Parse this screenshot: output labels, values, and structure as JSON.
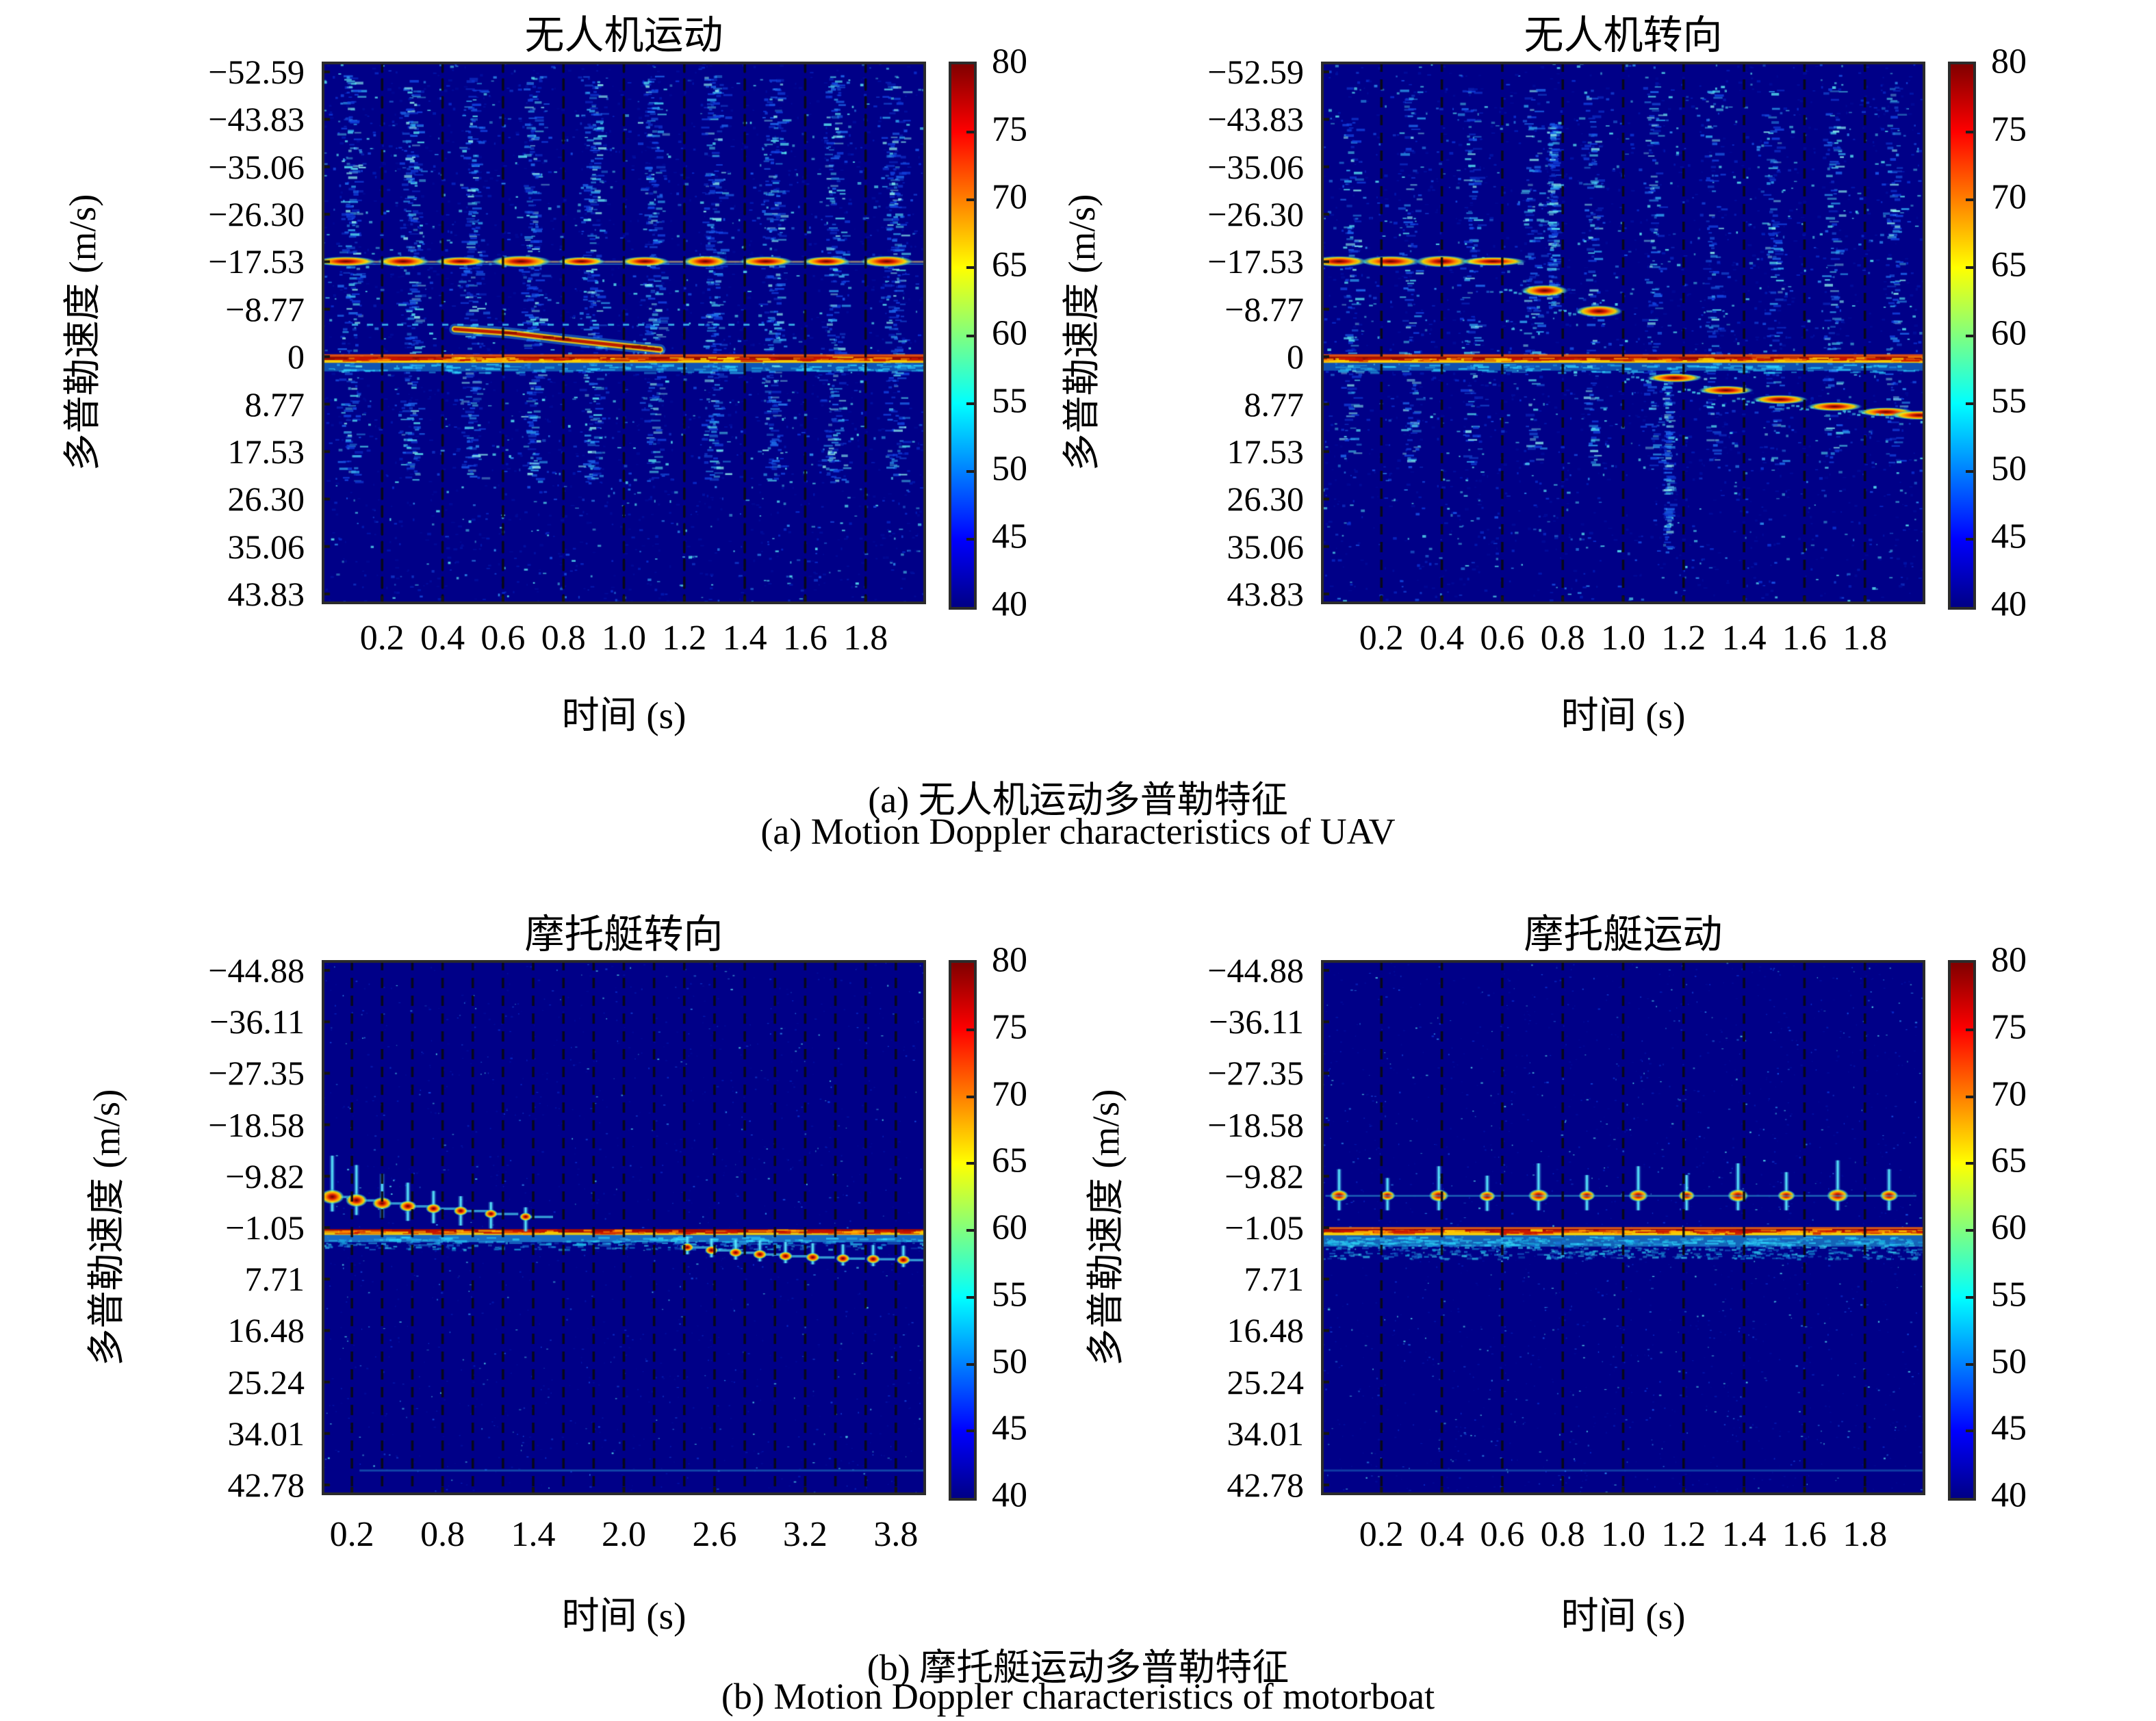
{
  "colors": {
    "plot_bg": "#000088",
    "border": "#2b2b2b",
    "text": "#000000",
    "zero_line": "#970a00",
    "hot_blob": "#d81e00",
    "speckle_cyan": "#55dff0"
  },
  "figure": {
    "captions": {
      "a_zh": "(a) 无人机运动多普勒特征",
      "a_en": "(a) Motion Doppler characteristics of UAV",
      "b_zh": "(b) 摩托艇运动多普勒特征",
      "b_en": "(b) Motion Doppler characteristics of motorboat"
    }
  },
  "colorbar": {
    "min": 40,
    "max": 80,
    "tick_labels": [
      "80",
      "75",
      "70",
      "65",
      "60",
      "55",
      "50",
      "45",
      "40"
    ]
  },
  "chart_data": [
    {
      "id": "uav-motion",
      "type": "heatmap",
      "title": "无人机运动",
      "xlabel": "时间 (s)",
      "ylabel": "多普勒速度 (m/s)",
      "x_range": [
        0,
        2.0
      ],
      "y_range": [
        -54.5,
        45.7
      ],
      "x_ticks": [
        "0.2",
        "0.4",
        "0.6",
        "0.8",
        "1.0",
        "1.2",
        "1.4",
        "1.6",
        "1.8"
      ],
      "x_tick_values": [
        0.2,
        0.4,
        0.6,
        0.8,
        1.0,
        1.2,
        1.4,
        1.6,
        1.8
      ],
      "y_ticks": [
        "−52.59",
        "−43.83",
        "−35.06",
        "−26.30",
        "−17.53",
        "−8.77",
        "0",
        "8.77",
        "17.53",
        "26.30",
        "35.06",
        "43.83"
      ],
      "colorbar_ticks": [
        "80",
        "75",
        "70",
        "65",
        "60",
        "55",
        "50",
        "45",
        "40"
      ],
      "seed": 7,
      "features": [
        {
          "type": "speckle",
          "count": 2600,
          "bright": 0.12
        },
        {
          "type": "columns",
          "ts": [
            0.09,
            0.29,
            0.49,
            0.69,
            0.89,
            1.09,
            1.29,
            1.49,
            1.69,
            1.89
          ],
          "v0": -52,
          "v1": 23,
          "count": 240,
          "spread": 0.05
        },
        {
          "type": "blob_row",
          "v": -17.6,
          "ts": [
            0.08,
            0.27,
            0.46,
            0.66,
            0.86,
            1.07,
            1.27,
            1.47,
            1.67,
            1.87
          ],
          "rx": 40,
          "ry": 8,
          "line": true
        },
        {
          "type": "dotline",
          "v": -6.1,
          "t0": 0.1,
          "t1": 1.55
        },
        {
          "type": "streak",
          "pts": [
            [
              0.44,
              -5.1
            ],
            [
              0.62,
              -4.4
            ],
            [
              0.8,
              -3.2
            ],
            [
              1.0,
              -2.0
            ],
            [
              1.12,
              -1.3
            ]
          ]
        },
        {
          "type": "hline",
          "v": 0.3,
          "t0": 0,
          "t1": 2,
          "layers": [
            [
              9,
              20,
              "#22c8f0",
              0.42
            ],
            [
              2,
              9,
              "#ffd200",
              0.95
            ],
            [
              -4,
              4,
              "#ff5a00",
              0.85
            ],
            [
              0,
              5,
              "#970a00",
              1
            ]
          ],
          "speckle": 260,
          "hot": true
        },
        {
          "type": "grid",
          "step": 0.2
        }
      ]
    },
    {
      "id": "uav-turning",
      "type": "heatmap",
      "title": "无人机转向",
      "xlabel": "时间 (s)",
      "ylabel": "多普勒速度 (m/s)",
      "x_range": [
        0,
        2.0
      ],
      "y_range": [
        -54.5,
        45.7
      ],
      "x_ticks": [
        "0.2",
        "0.4",
        "0.6",
        "0.8",
        "1.0",
        "1.2",
        "1.4",
        "1.6",
        "1.8"
      ],
      "x_tick_values": [
        0.2,
        0.4,
        0.6,
        0.8,
        1.0,
        1.2,
        1.4,
        1.6,
        1.8
      ],
      "y_ticks": [
        "−52.59",
        "−43.83",
        "−35.06",
        "−26.30",
        "−17.53",
        "−8.77",
        "0",
        "8.77",
        "17.53",
        "26.30",
        "35.06",
        "43.83"
      ],
      "colorbar_ticks": [
        "80",
        "75",
        "70",
        "65",
        "60",
        "55",
        "50",
        "45",
        "40"
      ],
      "seed": 13,
      "features": [
        {
          "type": "speckle",
          "count": 2400,
          "bright": 0.1
        },
        {
          "type": "columns",
          "ts": [
            0.09,
            0.29,
            0.49,
            0.69,
            0.89,
            1.09,
            1.29,
            1.49,
            1.69,
            1.89
          ],
          "v0": -50,
          "v1": 20,
          "count": 130,
          "spread": 0.045
        },
        {
          "type": "columns",
          "ts": [
            0.76
          ],
          "v0": -44,
          "v1": -9,
          "count": 170,
          "spread": 0.018
        },
        {
          "type": "columns",
          "ts": [
            1.14
          ],
          "v0": 2,
          "v1": 36,
          "count": 140,
          "spread": 0.018
        },
        {
          "type": "blob_row",
          "v": -17.6,
          "ts": [
            0.06,
            0.23,
            0.4,
            0.57
          ],
          "rx": 44,
          "ry": 8,
          "line": false
        },
        {
          "type": "blobs_desc",
          "items": [
            [
              0.74,
              -12.2
            ],
            [
              0.92,
              -8.4
            ]
          ],
          "rx": 36,
          "ry": 9
        },
        {
          "type": "hline",
          "v": 0.3,
          "t0": 0,
          "t1": 2,
          "layers": [
            [
              9,
              18,
              "#22c8f0",
              0.4
            ],
            [
              2,
              9,
              "#ffd200",
              0.95
            ],
            [
              -4,
              4,
              "#ff5a00",
              0.85
            ],
            [
              0,
              5,
              "#970a00",
              1
            ]
          ],
          "speckle": 240,
          "hot": true
        },
        {
          "type": "blobs_desc",
          "items": [
            [
              1.17,
              3.9
            ],
            [
              1.34,
              6.2
            ],
            [
              1.52,
              7.9
            ],
            [
              1.7,
              9.2
            ],
            [
              1.87,
              10.2
            ],
            [
              1.98,
              10.8
            ]
          ],
          "rx": 42,
          "ry": 7
        },
        {
          "type": "grid",
          "step": 0.2
        }
      ]
    },
    {
      "id": "motorboat-turning",
      "type": "heatmap",
      "title": "摩托艇转向",
      "xlabel": "时间 (s)",
      "ylabel": "多普勒速度 (m/s)",
      "x_range": [
        0,
        4.0
      ],
      "y_range": [
        -46.6,
        44.5
      ],
      "x_ticks": [
        "0.2",
        "0.8",
        "1.4",
        "2.0",
        "2.6",
        "3.2",
        "3.8"
      ],
      "x_tick_values": [
        0.2,
        0.8,
        1.4,
        2.0,
        2.6,
        3.2,
        3.8
      ],
      "y_ticks": [
        "−44.88",
        "−36.11",
        "−27.35",
        "−18.58",
        "−9.82",
        "−1.05",
        "7.71",
        "16.48",
        "25.24",
        "34.01",
        "42.78"
      ],
      "colorbar_ticks": [
        "80",
        "75",
        "70",
        "65",
        "60",
        "55",
        "50",
        "45",
        "40"
      ],
      "seed": 21,
      "features": [
        {
          "type": "speckle",
          "count": 1500,
          "bright": 0.05,
          "small": true
        },
        {
          "type": "hline",
          "v": -0.5,
          "t0": 0,
          "t1": 4,
          "layers": [
            [
              10,
              13,
              "#2fd8ff",
              0.5
            ],
            [
              3,
              6,
              "#ffd200",
              0.9
            ],
            [
              0,
              5,
              "#a80b00",
              1
            ]
          ],
          "speckle": 200,
          "hot": true
        },
        {
          "type": "band",
          "v0": 0.8,
          "v1": 2.6,
          "t0": 0,
          "t1": 4,
          "count": 260
        },
        {
          "type": "cross_row",
          "items": [
            [
              0.07,
              -6.3,
              7
            ],
            [
              0.23,
              -5.7,
              6
            ],
            [
              0.4,
              -5.2,
              5
            ],
            [
              0.57,
              -4.7,
              4
            ],
            [
              0.74,
              -4.3,
              3
            ],
            [
              0.92,
              -3.9,
              2.5
            ],
            [
              1.12,
              -3.4,
              2
            ],
            [
              1.35,
              -2.9,
              1.6
            ]
          ],
          "dash": 34,
          "down": 2.5
        },
        {
          "type": "cross_row",
          "items": [
            [
              2.42,
              2.3,
              1.8
            ],
            [
              2.58,
              2.8,
              2
            ],
            [
              2.74,
              3.2,
              2.2
            ],
            [
              2.9,
              3.5,
              2.4
            ],
            [
              3.07,
              3.8,
              2.4
            ],
            [
              3.25,
              4.0,
              2.4
            ],
            [
              3.45,
              4.2,
              2.4
            ],
            [
              3.65,
              4.3,
              2.4
            ],
            [
              3.85,
              4.45,
              2.4
            ]
          ],
          "dash": 26,
          "down": 1.2
        },
        {
          "type": "hline",
          "v": 40.3,
          "t0": 0.25,
          "t1": 4,
          "layers": [
            [
              0,
              3,
              "#35c8e8",
              0.35
            ]
          ]
        },
        {
          "type": "grid",
          "step": 0.2
        }
      ]
    },
    {
      "id": "motorboat-motion",
      "type": "heatmap",
      "title": "摩托艇运动",
      "xlabel": "时间 (s)",
      "ylabel": "多普勒速度 (m/s)",
      "x_range": [
        0,
        2.0
      ],
      "y_range": [
        -46.6,
        44.5
      ],
      "x_ticks": [
        "0.2",
        "0.4",
        "0.6",
        "0.8",
        "1.0",
        "1.2",
        "1.4",
        "1.6",
        "1.8"
      ],
      "x_tick_values": [
        0.2,
        0.4,
        0.6,
        0.8,
        1.0,
        1.2,
        1.4,
        1.6,
        1.8
      ],
      "y_ticks": [
        "−44.88",
        "−36.11",
        "−27.35",
        "−18.58",
        "−9.82",
        "−1.05",
        "7.71",
        "16.48",
        "25.24",
        "34.01",
        "42.78"
      ],
      "colorbar_ticks": [
        "80",
        "75",
        "70",
        "65",
        "60",
        "55",
        "50",
        "45",
        "40"
      ],
      "seed": 33,
      "features": [
        {
          "type": "speckle",
          "count": 2000,
          "bright": 0.07,
          "small": true
        },
        {
          "type": "hline",
          "v": -0.5,
          "t0": 0,
          "t1": 2,
          "layers": [
            [
              13,
              20,
              "#27c8e8",
              0.5
            ],
            [
              3,
              7,
              "#ffd200",
              0.95
            ],
            [
              -4,
              3,
              "#ff6a00",
              0.85
            ],
            [
              0,
              5,
              "#a80b00",
              1
            ]
          ],
          "speckle": 300,
          "hot": true
        },
        {
          "type": "band",
          "v0": 0.8,
          "v1": 4.2,
          "t0": 0,
          "t1": 2,
          "count": 700
        },
        {
          "type": "cross_row",
          "items": [
            [
              0.06,
              -6.5,
              4.5
            ],
            [
              0.22,
              -6.5,
              3
            ],
            [
              0.39,
              -6.5,
              5
            ],
            [
              0.55,
              -6.4,
              3.5
            ],
            [
              0.72,
              -6.5,
              5.5
            ],
            [
              0.88,
              -6.5,
              3.5
            ],
            [
              1.05,
              -6.5,
              5
            ],
            [
              1.21,
              -6.5,
              3.5
            ],
            [
              1.38,
              -6.5,
              5.5
            ],
            [
              1.54,
              -6.5,
              4
            ],
            [
              1.71,
              -6.5,
              6
            ],
            [
              1.88,
              -6.5,
              4.5
            ]
          ],
          "dash": 0,
          "down": 2.5,
          "connect": true
        },
        {
          "type": "hline",
          "v": 40.3,
          "t0": 0,
          "t1": 2,
          "layers": [
            [
              0,
              3,
              "#35c8e8",
              0.3
            ]
          ]
        },
        {
          "type": "grid",
          "step": 0.2
        }
      ]
    }
  ]
}
